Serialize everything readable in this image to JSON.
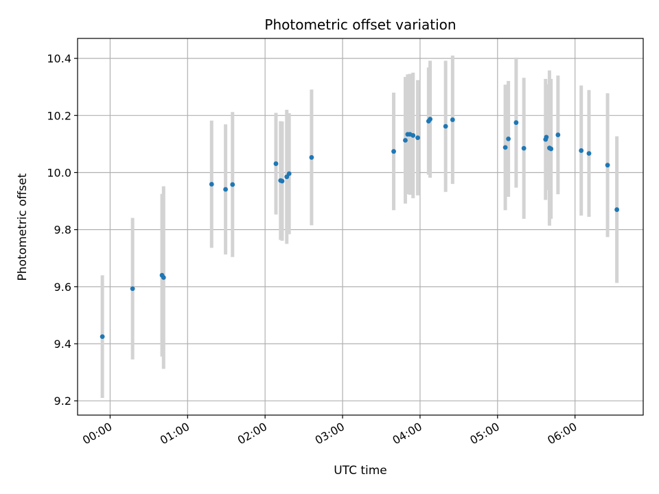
{
  "chart_data": {
    "type": "scatter",
    "title": "Photometric offset variation",
    "xlabel": "UTC time",
    "ylabel": "Photometric offset",
    "grid": true,
    "xlim_hours": [
      -0.42,
      6.88
    ],
    "ylim": [
      9.15,
      10.47
    ],
    "x_ticks": [
      {
        "value": 0,
        "label": "00:00"
      },
      {
        "value": 1,
        "label": "01:00"
      },
      {
        "value": 2,
        "label": "02:00"
      },
      {
        "value": 3,
        "label": "03:00"
      },
      {
        "value": 4,
        "label": "04:00"
      },
      {
        "value": 5,
        "label": "05:00"
      },
      {
        "value": 6,
        "label": "06:00"
      }
    ],
    "y_ticks": [
      {
        "value": 9.2,
        "label": "9.2"
      },
      {
        "value": 9.4,
        "label": "9.4"
      },
      {
        "value": 9.6,
        "label": "9.6"
      },
      {
        "value": 9.8,
        "label": "9.8"
      },
      {
        "value": 10.0,
        "label": "10.0"
      },
      {
        "value": 10.2,
        "label": "10.2"
      },
      {
        "value": 10.4,
        "label": "10.4"
      }
    ],
    "colors": {
      "marker": "#1f77b4",
      "errorbar": "#d3d3d3",
      "grid": "#b0b0b0"
    },
    "points": [
      {
        "t": -0.1,
        "y": 9.425,
        "err": 0.215
      },
      {
        "t": 0.29,
        "y": 9.593,
        "err": 0.248
      },
      {
        "t": 0.67,
        "y": 9.64,
        "err": 0.285
      },
      {
        "t": 0.69,
        "y": 9.632,
        "err": 0.32
      },
      {
        "t": 1.31,
        "y": 9.959,
        "err": 0.223
      },
      {
        "t": 1.49,
        "y": 9.941,
        "err": 0.228
      },
      {
        "t": 1.58,
        "y": 9.958,
        "err": 0.254
      },
      {
        "t": 2.14,
        "y": 10.031,
        "err": 0.178
      },
      {
        "t": 2.2,
        "y": 9.972,
        "err": 0.208
      },
      {
        "t": 2.22,
        "y": 9.97,
        "err": 0.209
      },
      {
        "t": 2.28,
        "y": 9.985,
        "err": 0.235
      },
      {
        "t": 2.31,
        "y": 9.996,
        "err": 0.212
      },
      {
        "t": 2.6,
        "y": 10.053,
        "err": 0.238
      },
      {
        "t": 3.66,
        "y": 10.074,
        "err": 0.206
      },
      {
        "t": 3.81,
        "y": 10.113,
        "err": 0.222
      },
      {
        "t": 3.84,
        "y": 10.134,
        "err": 0.21
      },
      {
        "t": 3.87,
        "y": 10.134,
        "err": 0.212
      },
      {
        "t": 3.91,
        "y": 10.13,
        "err": 0.22
      },
      {
        "t": 3.97,
        "y": 10.122,
        "err": 0.202
      },
      {
        "t": 4.11,
        "y": 10.18,
        "err": 0.188
      },
      {
        "t": 4.13,
        "y": 10.187,
        "err": 0.205
      },
      {
        "t": 4.33,
        "y": 10.162,
        "err": 0.23
      },
      {
        "t": 4.42,
        "y": 10.185,
        "err": 0.225
      },
      {
        "t": 5.1,
        "y": 10.088,
        "err": 0.22
      },
      {
        "t": 5.14,
        "y": 10.118,
        "err": 0.203
      },
      {
        "t": 5.24,
        "y": 10.175,
        "err": 0.228
      },
      {
        "t": 5.34,
        "y": 10.085,
        "err": 0.247
      },
      {
        "t": 5.62,
        "y": 10.116,
        "err": 0.212
      },
      {
        "t": 5.63,
        "y": 10.124,
        "err": 0.185
      },
      {
        "t": 5.67,
        "y": 10.086,
        "err": 0.272
      },
      {
        "t": 5.69,
        "y": 10.083,
        "err": 0.245
      },
      {
        "t": 5.78,
        "y": 10.132,
        "err": 0.208
      },
      {
        "t": 6.08,
        "y": 10.077,
        "err": 0.228
      },
      {
        "t": 6.18,
        "y": 10.067,
        "err": 0.222
      },
      {
        "t": 6.42,
        "y": 10.026,
        "err": 0.252
      },
      {
        "t": 6.54,
        "y": 9.87,
        "err": 0.257
      }
    ]
  }
}
